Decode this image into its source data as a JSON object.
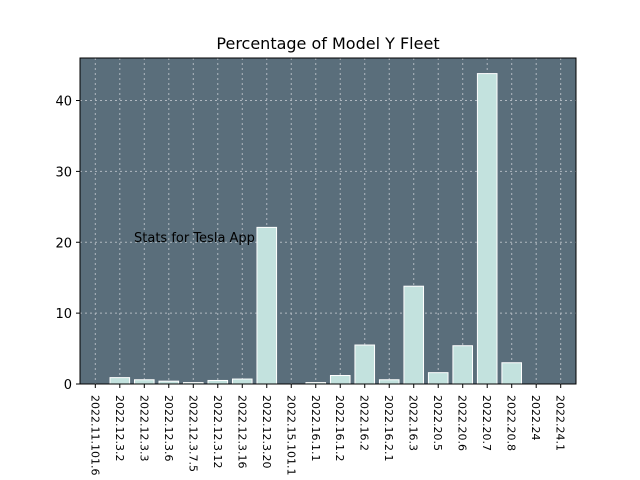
{
  "chart_data": {
    "type": "bar",
    "title": "Percentage of Model Y Fleet",
    "xlabel": "",
    "ylabel": "",
    "annotation": "Stats for Tesla App",
    "categories": [
      "2022.11.101.6",
      "2022.12.3.2",
      "2022.12.3.3",
      "2022.12.3.6",
      "2022.12.3.7.5",
      "2022.12.3.12",
      "2022.12.3.16",
      "2022.12.3.20",
      "2022.15.101.1",
      "2022.16.1.1",
      "2022.16.1.2",
      "2022.16.2",
      "2022.16.2.1",
      "2022.16.3",
      "2022.20.5",
      "2022.20.6",
      "2022.20.7",
      "2022.20.8",
      "2022.24",
      "2022.24.1"
    ],
    "values": [
      0.0,
      0.9,
      0.6,
      0.4,
      0.2,
      0.5,
      0.7,
      22.1,
      0.0,
      0.2,
      1.2,
      5.5,
      0.6,
      13.8,
      1.6,
      5.4,
      43.8,
      3.0,
      0.0,
      0.0
    ],
    "ylim": [
      0,
      46
    ],
    "yticks": [
      0,
      10,
      20,
      30,
      40
    ],
    "grid": true,
    "colors": {
      "plot_background": "#5a6e7b",
      "bar_fill": "#c3e2de",
      "bar_edge": "#ffffff",
      "grid": "#b0b8c0",
      "axis": "#000000"
    }
  }
}
